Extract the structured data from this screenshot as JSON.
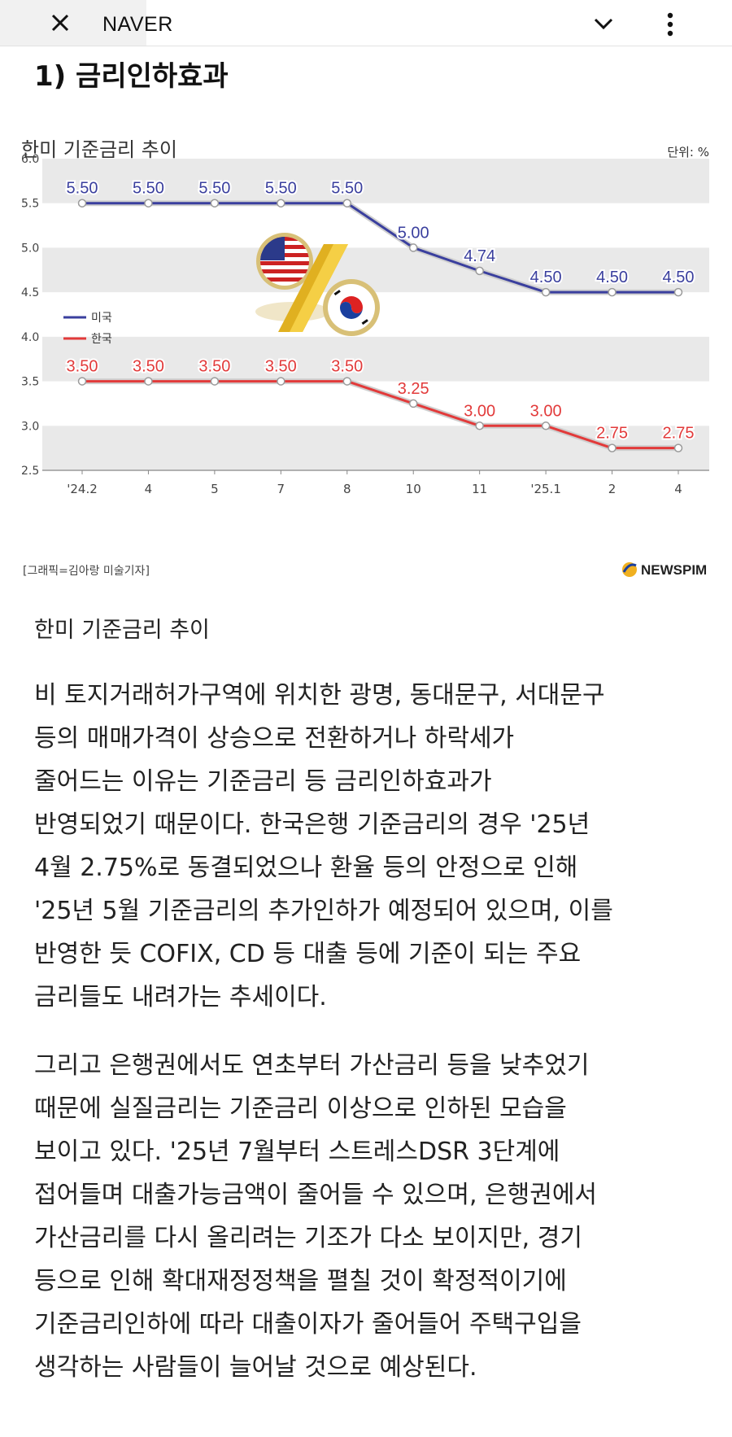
{
  "topbar": {
    "title": "NAVER"
  },
  "article": {
    "heading": "1) 금리인하효과",
    "caption": "한미 기준금리 추이",
    "paragraph1": "비 토지거래허가구역에 위치한 광명, 동대문구, 서대문구\n등의 매매가격이 상승으로 전환하거나 하락세가\n줄어드는 이유는 기준금리 등 금리인하효과가\n반영되었기 때문이다. 한국은행 기준금리의 경우 '25년\n4월 2.75%로 동결되었으나 환율 등의 안정으로 인해\n'25년 5월 기준금리의 추가인하가 예정되어 있으며, 이를\n반영한 듯 COFIX, CD 등 대출 등에 기준이 되는 주요\n금리들도 내려가는 추세이다.",
    "paragraph2": "그리고 은행권에서도 연초부터 가산금리 등을 낮추었기\n때문에 실질금리는 기준금리 이상으로 인하된 모습을\n보이고 있다. '25년 7월부터 스트레스DSR 3단계에\n접어들며 대출가능금액이 줄어들 수 있으며, 은행권에서\n가산금리를 다시 올리려는 기조가 다소 보이지만, 경기\n등으로 인해 확대재정정책을 펼칠 것이 확정적이기에\n기준금리인하에 따라 대출이자가 줄어들어 주택구입을\n생각하는 사람들이 늘어날 것으로 예상된다."
  },
  "chart_data": {
    "type": "line",
    "title": "한미 기준금리 추이",
    "unit": "단위: %",
    "credit": "[그래픽=김아랑 미술기자]",
    "source": "NEWSPIM",
    "categories": [
      "'24.2",
      "4",
      "5",
      "7",
      "8",
      "10",
      "11",
      "'25.1",
      "2",
      "4"
    ],
    "ylim": [
      2.5,
      6.0
    ],
    "yticks": [
      "6.0",
      "5.5",
      "5.0",
      "4.5",
      "4.0",
      "3.5",
      "3.0",
      "2.5"
    ],
    "series": [
      {
        "name": "미국",
        "color": "#3a3f9e",
        "values": [
          5.5,
          5.5,
          5.5,
          5.5,
          5.5,
          5.0,
          4.74,
          4.5,
          4.5,
          4.5
        ],
        "labels": [
          "5.50",
          "5.50",
          "5.50",
          "5.50",
          "5.50",
          "5.00",
          "4.74",
          "4.50",
          "4.50",
          "4.50"
        ]
      },
      {
        "name": "한국",
        "color": "#e23a3a",
        "values": [
          3.5,
          3.5,
          3.5,
          3.5,
          3.5,
          3.25,
          3.0,
          3.0,
          2.75,
          2.75
        ],
        "labels": [
          "3.50",
          "3.50",
          "3.50",
          "3.50",
          "3.50",
          "3.25",
          "3.00",
          "3.00",
          "2.75",
          "2.75"
        ]
      }
    ],
    "legend_position": "left-middle",
    "grid": true
  }
}
